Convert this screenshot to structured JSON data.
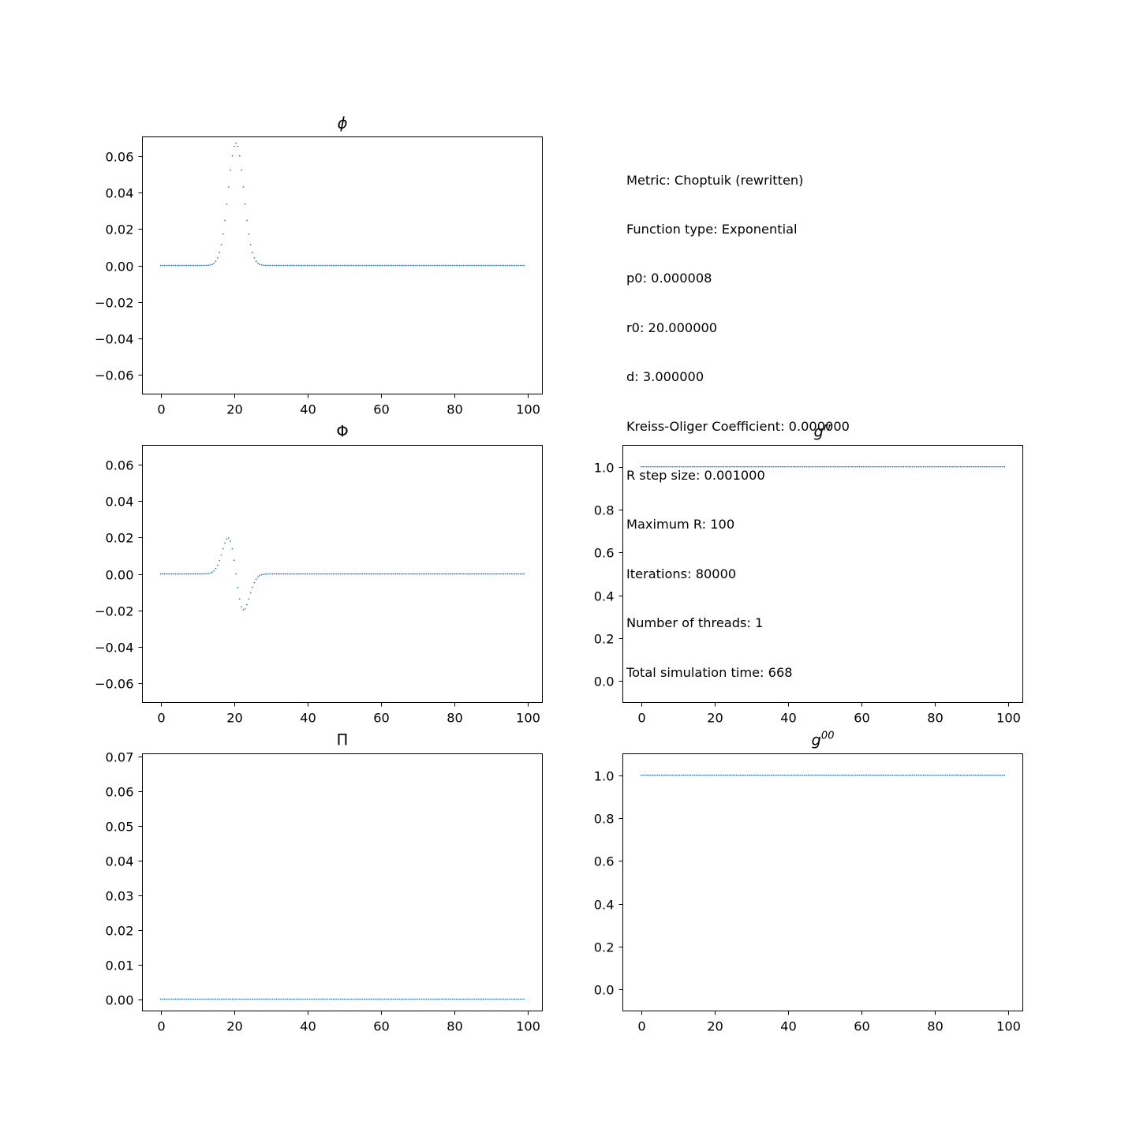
{
  "info": {
    "lines": [
      "Metric: Choptuik (rewritten)",
      "Function type: Exponential",
      "p0: 0.000008",
      "r0: 20.000000",
      "d: 3.000000",
      "Kreiss-Oliger Coefficient: 0.000000",
      "R step size: 0.001000",
      "Maximum R: 100",
      "Iterations: 80000",
      "Number of threads: 1",
      "Total simulation time: 668"
    ]
  },
  "colors": {
    "series": "#1f77b4",
    "axes": "#000000",
    "background": "#ffffff"
  },
  "chart_data": [
    {
      "id": "phi",
      "type": "scatter",
      "title": "ϕ",
      "title_style": "italic",
      "xlim": [
        -5,
        104
      ],
      "ylim": [
        -0.0707,
        0.0707
      ],
      "xticks": [
        0,
        20,
        40,
        60,
        80,
        100
      ],
      "yticks": [
        -0.06,
        -0.04,
        -0.02,
        0.0,
        0.02,
        0.04,
        0.06
      ],
      "xticklabels": [
        "0",
        "20",
        "40",
        "60",
        "80",
        "100"
      ],
      "yticklabels": [
        "−0.06",
        "−0.04",
        "−0.02",
        "0.00",
        "0.02",
        "0.04",
        "0.06"
      ],
      "series": [
        {
          "function": "gaussian",
          "amplitude": 0.0673,
          "center": 20.5,
          "width": 3.0,
          "x_start": 0,
          "x_end": 99,
          "x_step": 0.5
        }
      ]
    },
    {
      "id": "Phi",
      "type": "scatter",
      "title": "Φ",
      "title_style": "normal",
      "xlim": [
        -5,
        104
      ],
      "ylim": [
        -0.0707,
        0.0707
      ],
      "xticks": [
        0,
        20,
        40,
        60,
        80,
        100
      ],
      "yticks": [
        -0.06,
        -0.04,
        -0.02,
        0.0,
        0.02,
        0.04,
        0.06
      ],
      "xticklabels": [
        "0",
        "20",
        "40",
        "60",
        "80",
        "100"
      ],
      "yticklabels": [
        "−0.06",
        "−0.04",
        "−0.02",
        "0.00",
        "0.02",
        "0.04",
        "0.06"
      ],
      "series": [
        {
          "function": "gaussian_derivative",
          "amplitude": 0.0198,
          "center": 20.5,
          "width": 3.0,
          "x_start": 0,
          "x_end": 99,
          "x_step": 0.5
        }
      ]
    },
    {
      "id": "Pi",
      "type": "scatter",
      "title": "Π",
      "title_style": "normal",
      "xlim": [
        -5,
        104
      ],
      "ylim": [
        -0.0034,
        0.0707
      ],
      "xticks": [
        0,
        20,
        40,
        60,
        80,
        100
      ],
      "yticks": [
        0.0,
        0.01,
        0.02,
        0.03,
        0.04,
        0.05,
        0.06,
        0.07
      ],
      "xticklabels": [
        "0",
        "20",
        "40",
        "60",
        "80",
        "100"
      ],
      "yticklabels": [
        "0.00",
        "0.01",
        "0.02",
        "0.03",
        "0.04",
        "0.05",
        "0.06",
        "0.07"
      ],
      "series": [
        {
          "function": "constant",
          "value": 0.0,
          "x_start": 0,
          "x_end": 99,
          "x_step": 0.5
        }
      ]
    },
    {
      "id": "grr",
      "type": "scatter",
      "title": "g",
      "title_sup": "rr",
      "title_style": "italic",
      "xlim": [
        -5,
        104
      ],
      "ylim": [
        -0.1,
        1.1
      ],
      "xticks": [
        0,
        20,
        40,
        60,
        80,
        100
      ],
      "yticks": [
        0.0,
        0.2,
        0.4,
        0.6,
        0.8,
        1.0
      ],
      "xticklabels": [
        "0",
        "20",
        "40",
        "60",
        "80",
        "100"
      ],
      "yticklabels": [
        "0.0",
        "0.2",
        "0.4",
        "0.6",
        "0.8",
        "1.0"
      ],
      "series": [
        {
          "function": "constant",
          "value": 1.0,
          "x_start": 0,
          "x_end": 99,
          "x_step": 0.5
        }
      ]
    },
    {
      "id": "g00",
      "type": "scatter",
      "title": "g",
      "title_sup": "00",
      "title_style": "italic",
      "xlim": [
        -5,
        104
      ],
      "ylim": [
        -0.1,
        1.1
      ],
      "xticks": [
        0,
        20,
        40,
        60,
        80,
        100
      ],
      "yticks": [
        0.0,
        0.2,
        0.4,
        0.6,
        0.8,
        1.0
      ],
      "xticklabels": [
        "0",
        "20",
        "40",
        "60",
        "80",
        "100"
      ],
      "yticklabels": [
        "0.0",
        "0.2",
        "0.4",
        "0.6",
        "0.8",
        "1.0"
      ],
      "series": [
        {
          "function": "constant",
          "value": 1.0,
          "x_start": 0,
          "x_end": 99,
          "x_step": 0.5
        }
      ]
    }
  ]
}
